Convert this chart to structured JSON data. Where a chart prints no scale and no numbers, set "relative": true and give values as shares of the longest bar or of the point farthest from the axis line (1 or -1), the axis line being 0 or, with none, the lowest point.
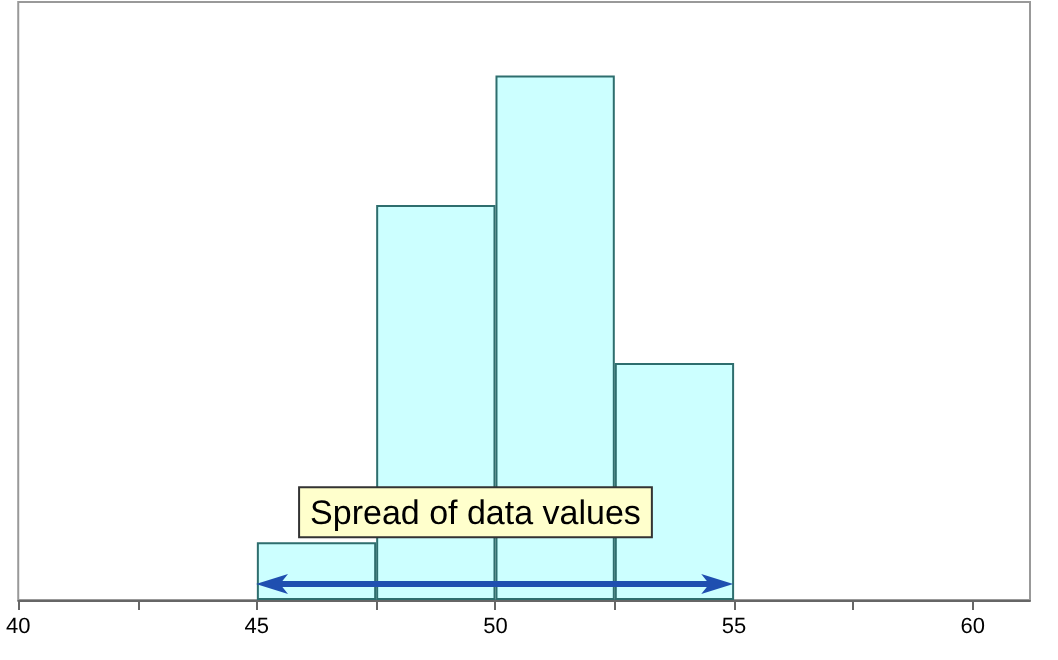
{
  "chart_data": {
    "type": "bar",
    "relative": true,
    "x": [
      46.25,
      48.75,
      51.25,
      53.75
    ],
    "values": [
      0.11,
      0.753,
      1,
      0.452
    ],
    "color": "#ccffff",
    "xlim": [
      40,
      61.2
    ],
    "xticks": [
      40,
      {
        "value": 42.5,
        "label": null
      },
      45,
      {
        "value": 47.5,
        "label": null
      },
      50,
      {
        "value": 52.5,
        "label": null
      },
      55,
      {
        "value": 57.5,
        "label": null
      },
      60
    ],
    "tick_labels": "x",
    "grid": false,
    "annotations": [
      "Spread of data values"
    ]
  }
}
